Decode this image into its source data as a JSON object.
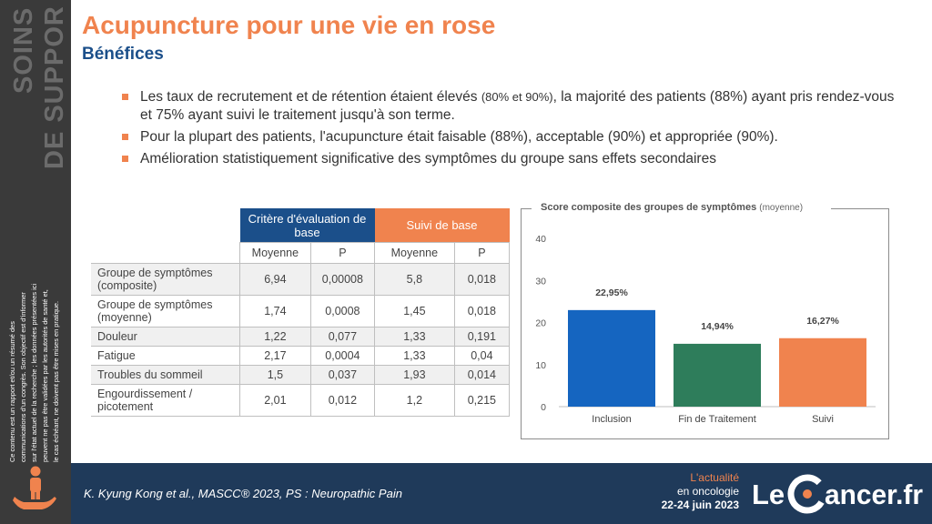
{
  "sidebar": {
    "title_line1": "SOINS",
    "title_line2": "DE SUPPORT",
    "disclaimer_lines": [
      "Ce contenu est un rapport et/ou un résumé des",
      "communications d'un congrès. Son objectif est d'informer",
      "sur l'état actuel de la recherche ; les données présentées ici",
      "peuvent ne pas être validées par les autorités de santé et,",
      "le cas échéant, ne doivent pas être mises en pratique."
    ],
    "icon": "hand-holding-person-icon"
  },
  "title": "Acupuncture pour une vie en rose",
  "subtitle": "Bénéfices",
  "bullets": [
    {
      "parts": [
        {
          "text": "Les taux de recrutement et de rétention étaient élevés ",
          "small": false
        },
        {
          "text": "(80% et 90%)",
          "small": true
        },
        {
          "text": ", la majorité des patients  (88%) ayant pris rendez-vous et 75% ayant suivi le traitement jusqu'à son terme.",
          "small": false
        }
      ]
    },
    {
      "parts": [
        {
          "text": "Pour la plupart des patients, l'acupuncture était faisable (88%), acceptable (90%) et appropriée  (90%).",
          "small": false
        }
      ]
    },
    {
      "parts": [
        {
          "text": "Amélioration statistiquement significative  des symptômes du groupe sans effets secondaires",
          "small": false
        }
      ]
    }
  ],
  "table": {
    "group_headers": [
      "Critère d'évaluation de base",
      "Suivi de base"
    ],
    "sub_headers": [
      "Moyenne",
      "P",
      "Moyenne",
      "P"
    ],
    "rows": [
      {
        "label": "Groupe de symptômes (composite)",
        "values": [
          "6,94",
          "0,00008",
          "5,8",
          "0,018"
        ]
      },
      {
        "label": "Groupe de symptômes (moyenne)",
        "values": [
          "1,74",
          "0,0008",
          "1,45",
          "0,018"
        ]
      },
      {
        "label": "Douleur",
        "values": [
          "1,22",
          "0,077",
          "1,33",
          "0,191"
        ]
      },
      {
        "label": "Fatigue",
        "values": [
          "2,17",
          "0,0004",
          "1,33",
          "0,04"
        ]
      },
      {
        "label": "Troubles du sommeil",
        "values": [
          "1,5",
          "0,037",
          "1,93",
          "0,014"
        ]
      },
      {
        "label": "Engourdissement / picotement",
        "values": [
          "2,01",
          "0,012",
          "1,2",
          "0,215"
        ]
      }
    ]
  },
  "chart_data": {
    "type": "bar",
    "title": "Score composite des groupes de symptômes",
    "title_unit": "(moyenne)",
    "categories": [
      "Inclusion",
      "Fin de Traitement",
      "Suivi"
    ],
    "values": [
      22.95,
      14.94,
      16.27
    ],
    "data_labels": [
      "22,95%",
      "14,94%",
      "16,27%"
    ],
    "colors": [
      "#1565c0",
      "#2e7d5b",
      "#f0834e"
    ],
    "ylim": [
      0,
      40
    ],
    "yticks": [
      0,
      10,
      20,
      30,
      40
    ],
    "grid": false,
    "xlabel": "",
    "ylabel": ""
  },
  "footer": {
    "citation": "K. Kyung Kong et al., MASCC® 2023, PS : Neuropathic Pain",
    "event_line1": "L'actualité",
    "event_line2": "en oncologie",
    "event_dates": "22-24 juin 2023",
    "logo_text_le": "Le",
    "logo_text_rest": "ancer.fr"
  },
  "colors": {
    "accent_orange": "#f0834e",
    "navy": "#1b4f8a",
    "footer_bg": "#1f3a5a",
    "sidebar_bg": "#3a3a3a"
  }
}
